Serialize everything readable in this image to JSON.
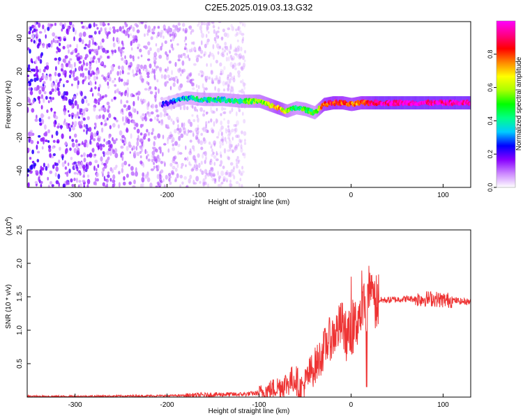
{
  "figure": {
    "title": "C2E5.2025.019.03.13.G32"
  },
  "chart_data": [
    {
      "type": "heatmap",
      "name": "spectrogram",
      "xlabel": "Height of straight line (km)",
      "ylabel": "Frequency (Hz)",
      "xlim": [
        -352,
        130
      ],
      "ylim": [
        -50,
        50
      ],
      "xticks": [
        -300,
        -200,
        -100,
        0,
        100
      ],
      "yticks": [
        -40,
        -20,
        0,
        20,
        40
      ],
      "colorbar": {
        "label": "Normalized spectral amplitude",
        "range": [
          0,
          1
        ],
        "ticks": [
          0.0,
          0.2,
          0.4,
          0.6,
          0.8
        ],
        "colors": [
          "#ffffff",
          "#cc88ff",
          "#8800ff",
          "#0000ff",
          "#00ccff",
          "#00ff88",
          "#00ff00",
          "#aaff00",
          "#ffff00",
          "#ff8800",
          "#ff0000",
          "#ff0088",
          "#ff00ff"
        ]
      },
      "noise_region_x": [
        -352,
        -115
      ],
      "signal_track": {
        "x": [
          -205,
          -180,
          -160,
          -140,
          -120,
          -100,
          -90,
          -80,
          -70,
          -60,
          -50,
          -40,
          -30,
          -20,
          -10,
          0,
          10,
          30,
          60,
          90,
          130
        ],
        "y": [
          0,
          4,
          3,
          3,
          2,
          2,
          0,
          -2,
          -4,
          -2,
          -3,
          -5,
          0,
          1,
          1,
          0,
          1,
          1,
          1,
          1,
          1
        ],
        "amplitude": [
          0.2,
          0.35,
          0.4,
          0.4,
          0.45,
          0.55,
          0.6,
          0.75,
          0.55,
          0.45,
          0.5,
          0.45,
          0.8,
          0.85,
          0.8,
          0.75,
          0.8,
          0.95,
          0.95,
          0.95,
          0.95
        ]
      }
    },
    {
      "type": "line",
      "name": "snr",
      "xlabel": "Height of straight line (km)",
      "ylabel": "SNR (10 * v/v)",
      "scale_label": "(x10",
      "scale_exp": "4",
      "scale_close": ")",
      "xlim": [
        -352,
        130
      ],
      "ylim": [
        0,
        2.5
      ],
      "xticks": [
        -300,
        -200,
        -100,
        0,
        100
      ],
      "yticks": [
        0.5,
        1.0,
        1.5,
        2.0,
        2.5
      ],
      "series": [
        {
          "color": "#ee3333",
          "x": [
            -352,
            -300,
            -250,
            -200,
            -180,
            -160,
            -150,
            -140,
            -120,
            -100,
            -90,
            -80,
            -70,
            -65,
            -60,
            -55,
            -50,
            -45,
            -40,
            -35,
            -30,
            -25,
            -20,
            -15,
            -10,
            -5,
            0,
            5,
            10,
            15,
            20,
            22,
            25,
            30,
            40,
            50,
            60,
            70,
            80,
            90,
            100,
            110,
            120,
            130
          ],
          "y": [
            0.01,
            0.01,
            0.015,
            0.02,
            0.025,
            0.03,
            0.035,
            0.04,
            0.04,
            0.06,
            0.1,
            0.15,
            0.2,
            0.25,
            0.28,
            0.1,
            0.2,
            0.35,
            0.45,
            0.55,
            0.7,
            0.85,
            0.9,
            1.0,
            1.1,
            0.9,
            0.95,
            1.1,
            1.25,
            1.35,
            1.45,
            1.4,
            1.42,
            1.45,
            1.45,
            1.46,
            1.47,
            1.47,
            1.47,
            1.47,
            1.45,
            1.45,
            1.43,
            1.43
          ]
        }
      ]
    }
  ]
}
